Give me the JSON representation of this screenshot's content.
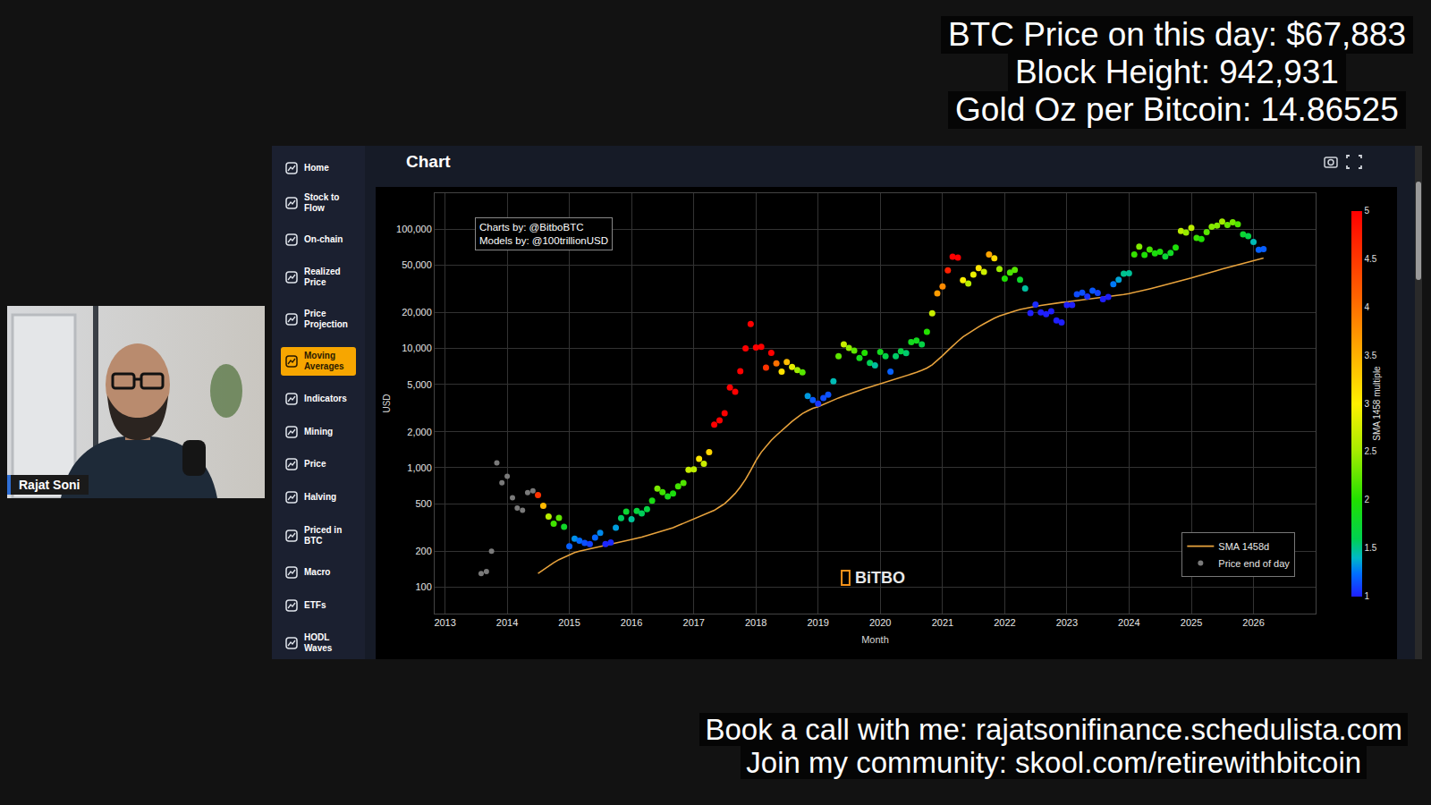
{
  "overlay": {
    "top": [
      "BTC Price on this day: $67,883",
      "Block Height: 942,931",
      "Gold Oz per Bitcoin: 14.86525"
    ],
    "footer": [
      "Book a call with me: rajatsonifinance.schedulista.com",
      "Join my community: skool.com/retirewithbitcoin"
    ]
  },
  "presenter": {
    "name": "Rajat Soni"
  },
  "app": {
    "panel_title": "Chart",
    "menu": [
      "Home",
      "Stock to Flow",
      "On-chain",
      "Realized Price",
      "Price Projection",
      "Moving Averages",
      "Indicators",
      "Mining",
      "Price",
      "Halving",
      "Priced in BTC",
      "Macro",
      "ETFs",
      "HODL Waves"
    ],
    "active": "Moving Averages"
  },
  "chart_data": {
    "type": "scatter",
    "annotations": [
      "Charts by: @BitboBTC",
      "Models by: @100trillionUSD"
    ],
    "watermark": "BiTBO",
    "x_label": "Month",
    "y_label": "USD",
    "x": [
      "2013-08",
      "2013-09",
      "2013-10",
      "2013-11",
      "2013-12",
      "2014-01",
      "2014-02",
      "2014-03",
      "2014-04",
      "2014-05",
      "2014-06",
      "2014-07",
      "2014-08",
      "2014-09",
      "2014-10",
      "2014-11",
      "2014-12",
      "2015-01",
      "2015-02",
      "2015-03",
      "2015-04",
      "2015-05",
      "2015-06",
      "2015-07",
      "2015-08",
      "2015-09",
      "2015-10",
      "2015-11",
      "2015-12",
      "2016-01",
      "2016-02",
      "2016-03",
      "2016-04",
      "2016-05",
      "2016-06",
      "2016-07",
      "2016-08",
      "2016-09",
      "2016-10",
      "2016-11",
      "2016-12",
      "2017-01",
      "2017-02",
      "2017-03",
      "2017-04",
      "2017-05",
      "2017-06",
      "2017-07",
      "2017-08",
      "2017-09",
      "2017-10",
      "2017-11",
      "2017-12",
      "2018-01",
      "2018-02",
      "2018-03",
      "2018-04",
      "2018-05",
      "2018-06",
      "2018-07",
      "2018-08",
      "2018-09",
      "2018-10",
      "2018-11",
      "2018-12",
      "2019-01",
      "2019-02",
      "2019-03",
      "2019-04",
      "2019-05",
      "2019-06",
      "2019-07",
      "2019-08",
      "2019-09",
      "2019-10",
      "2019-11",
      "2019-12",
      "2020-01",
      "2020-02",
      "2020-03",
      "2020-04",
      "2020-05",
      "2020-06",
      "2020-07",
      "2020-08",
      "2020-09",
      "2020-10",
      "2020-11",
      "2020-12",
      "2021-01",
      "2021-02",
      "2021-03",
      "2021-04",
      "2021-05",
      "2021-06",
      "2021-07",
      "2021-08",
      "2021-09",
      "2021-10",
      "2021-11",
      "2021-12",
      "2022-01",
      "2022-02",
      "2022-03",
      "2022-04",
      "2022-05",
      "2022-06",
      "2022-07",
      "2022-08",
      "2022-09",
      "2022-10",
      "2022-11",
      "2022-12",
      "2023-01",
      "2023-02",
      "2023-03",
      "2023-04",
      "2023-05",
      "2023-06",
      "2023-07",
      "2023-08",
      "2023-09",
      "2023-10",
      "2023-11",
      "2023-12",
      "2024-01",
      "2024-02",
      "2024-03",
      "2024-04",
      "2024-05",
      "2024-06",
      "2024-07",
      "2024-08",
      "2024-09",
      "2024-10",
      "2024-11",
      "2024-12",
      "2025-01",
      "2025-02",
      "2025-03",
      "2025-04",
      "2025-05",
      "2025-06",
      "2025-07",
      "2025-08",
      "2025-09",
      "2025-10",
      "2025-11",
      "2025-12",
      "2026-01",
      "2026-02",
      "2026-03"
    ],
    "series": [
      {
        "name": "SMA 1458d",
        "type": "line",
        "color": "#e8a33d",
        "line_style": "solid",
        "values": [
          null,
          null,
          null,
          null,
          null,
          null,
          null,
          null,
          null,
          null,
          null,
          130,
          140,
          150,
          160,
          170,
          178,
          185,
          195,
          200,
          205,
          210,
          215,
          220,
          225,
          230,
          235,
          240,
          245,
          250,
          256,
          262,
          270,
          278,
          286,
          295,
          305,
          315,
          328,
          342,
          358,
          370,
          385,
          400,
          420,
          440,
          470,
          500,
          550,
          610,
          690,
          800,
          950,
          1150,
          1350,
          1520,
          1700,
          1870,
          2050,
          2250,
          2450,
          2650,
          2850,
          3000,
          3150,
          3250,
          3400,
          3550,
          3700,
          3850,
          4000,
          4150,
          4300,
          4450,
          4600,
          4750,
          4900,
          5050,
          5200,
          5350,
          5500,
          5700,
          5900,
          6100,
          6300,
          6550,
          6850,
          7300,
          7900,
          8700,
          9600,
          10500,
          11500,
          12500,
          13400,
          14300,
          15200,
          16100,
          17000,
          17900,
          18700,
          19400,
          20000,
          20600,
          21200,
          21700,
          22100,
          22500,
          22900,
          23300,
          23700,
          24000,
          24300,
          24600,
          24900,
          25200,
          25500,
          25800,
          26100,
          26400,
          26700,
          27000,
          27400,
          27800,
          28300,
          28800,
          29400,
          30100,
          30800,
          31600,
          32400,
          33200,
          34000,
          34900,
          35800,
          36800,
          37900,
          39000,
          40200,
          41400,
          42600,
          43800,
          45000,
          46300,
          47600,
          49000,
          50400,
          51800,
          53200,
          54600,
          56000,
          57300
        ]
      },
      {
        "name": "Price end of day",
        "type": "scatter",
        "marker": "dot",
        "color": "#7a7a7a",
        "values": [
          130,
          135,
          200,
          1100,
          750,
          850,
          560,
          460,
          440,
          620,
          640,
          590,
          480,
          390,
          340,
          380,
          320,
          220,
          255,
          245,
          235,
          230,
          260,
          285,
          230,
          237,
          315,
          378,
          430,
          370,
          435,
          415,
          450,
          530,
          670,
          625,
          575,
          610,
          700,
          745,
          960,
          970,
          1190,
          1080,
          1350,
          2300,
          2500,
          2870,
          4700,
          4340,
          6450,
          10000,
          16000,
          10200,
          10300,
          6900,
          9200,
          7500,
          6400,
          7700,
          7000,
          6600,
          6300,
          4000,
          3700,
          3450,
          3850,
          4100,
          5300,
          8600,
          10800,
          10100,
          9600,
          8300,
          9200,
          7550,
          7200,
          9350,
          8600,
          6400,
          8600,
          9450,
          9150,
          11300,
          11650,
          10800,
          13800,
          19700,
          29000,
          33100,
          45200,
          58800,
          57700,
          37300,
          35000,
          41500,
          47100,
          43800,
          61300,
          57000,
          46300,
          38500,
          43200,
          45500,
          37700,
          31800,
          19800,
          23300,
          20050,
          19400,
          20500,
          17200,
          16550,
          23100,
          23150,
          28500,
          29300,
          27200,
          30500,
          29200,
          25900,
          27000,
          34500,
          37700,
          42300,
          42600,
          61200,
          71300,
          60700,
          67500,
          62700,
          64600,
          58900,
          63300,
          70200,
          96400,
          93400,
          102400,
          84400,
          82500,
          94200,
          104600,
          107100,
          115700,
          108200,
          114000,
          109600,
          90400,
          87500,
          78000,
          67000,
          68000
        ]
      }
    ],
    "colorbar": {
      "title": "SMA 1458 multiple",
      "range": [
        1,
        5
      ],
      "ticks": [
        1,
        1.5,
        2,
        2.5,
        3,
        3.5,
        4,
        4.5,
        5
      ]
    },
    "log": "y",
    "grid": true,
    "legend": "bottom right",
    "xlim": [
      "2012-11",
      "2027-01"
    ],
    "xticks": [
      "2013",
      "2014",
      "2015",
      "2016",
      "2017",
      "2018",
      "2019",
      "2020",
      "2021",
      "2022",
      "2023",
      "2024",
      "2025",
      "2026"
    ],
    "ylim": [
      60,
      200000
    ],
    "yticks": [
      100,
      200,
      500,
      {
        "value": 1000,
        "label": "1,000"
      },
      {
        "value": 2000,
        "label": "2,000"
      },
      {
        "value": 5000,
        "label": "5,000"
      },
      {
        "value": 10000,
        "label": "10,000"
      },
      {
        "value": 20000,
        "label": "20,000"
      },
      {
        "value": 50000,
        "label": "50,000"
      },
      {
        "value": 100000,
        "label": "100,000"
      }
    ]
  }
}
